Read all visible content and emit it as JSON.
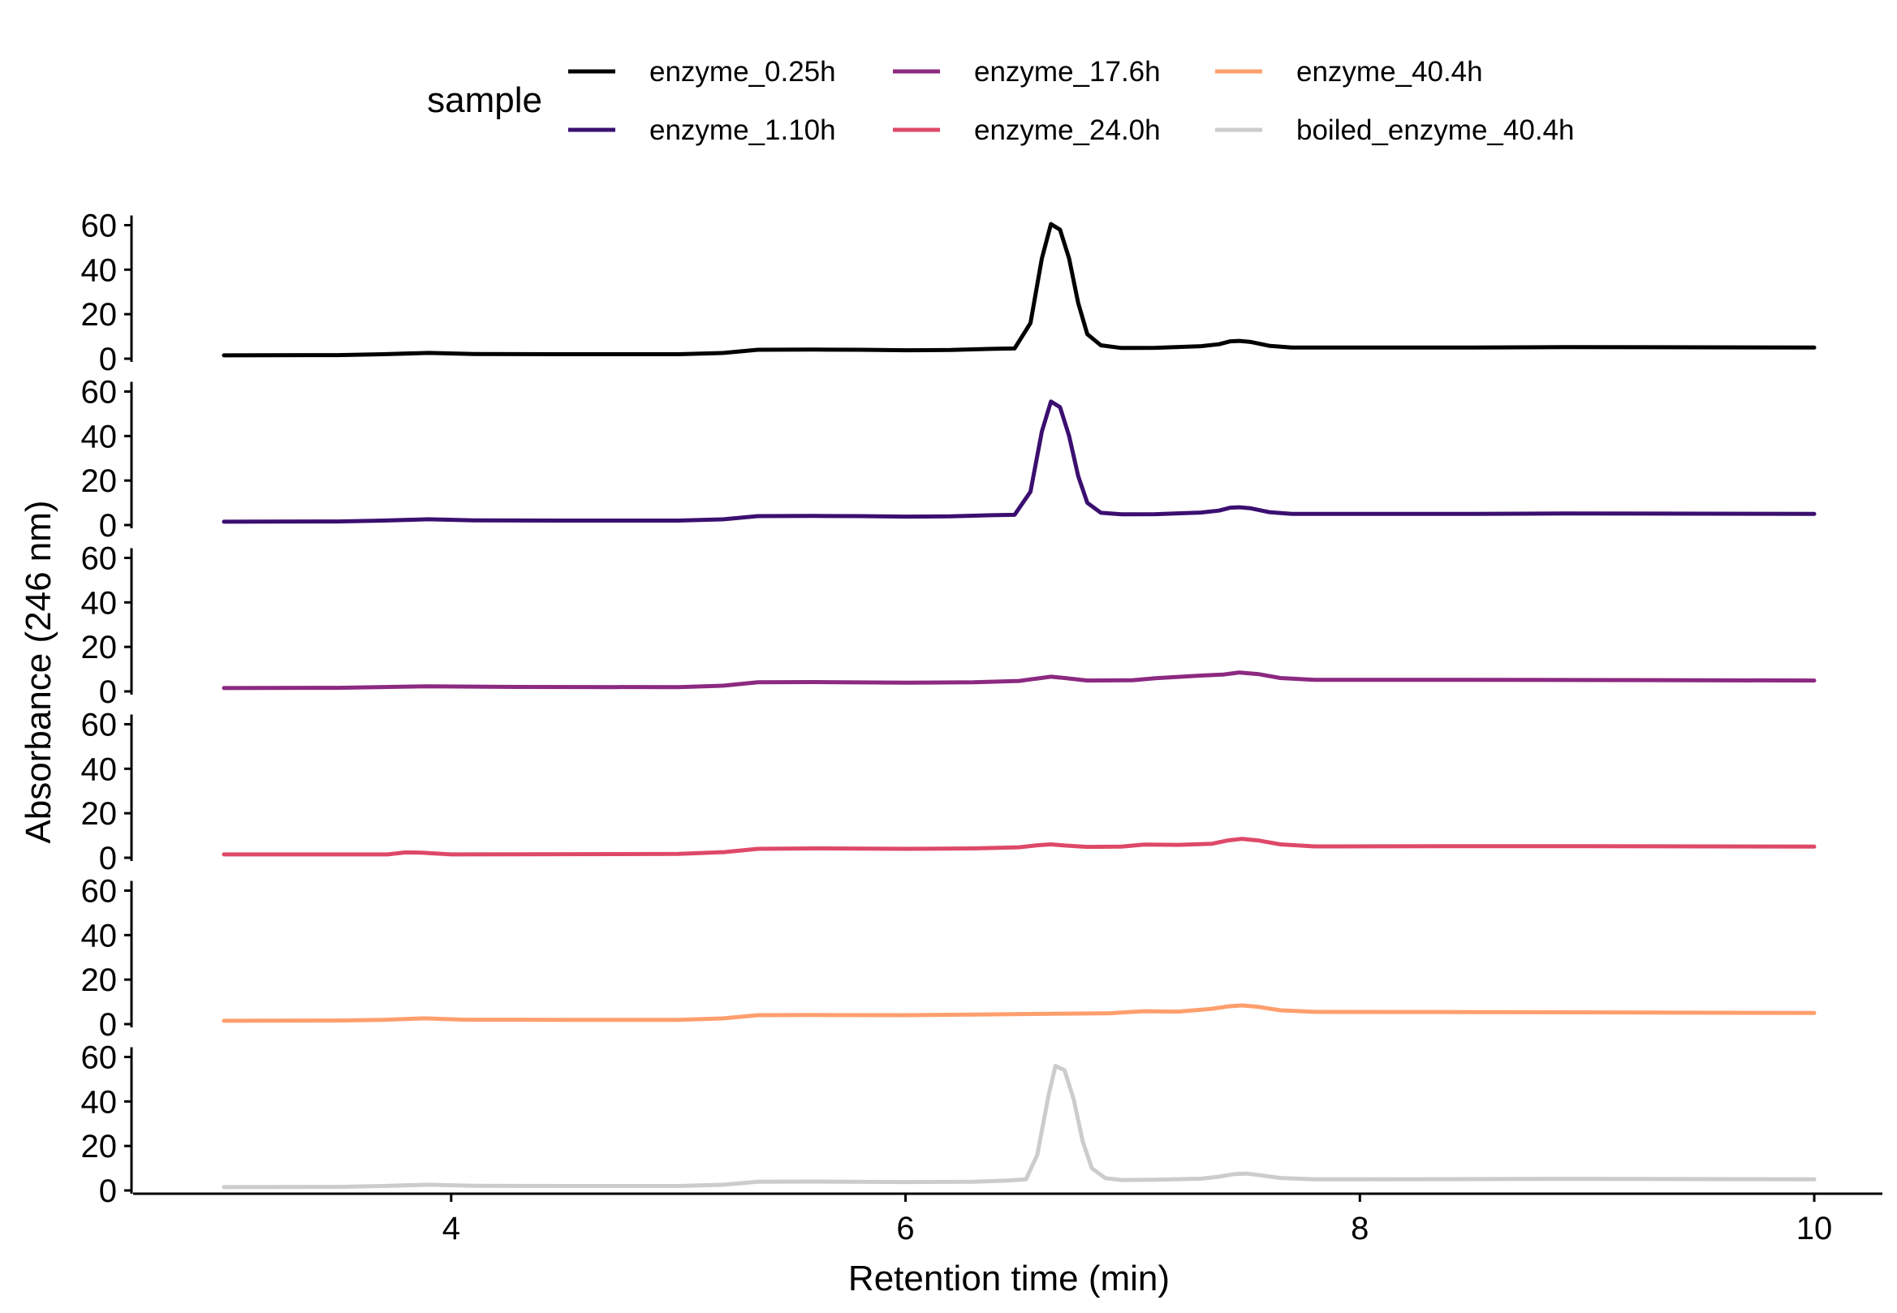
{
  "chart_data": {
    "type": "line",
    "layout": "stacked-panels",
    "xlabel": "Retention time (min)",
    "ylabel": "Absorbance (246 nm)",
    "xlim": [
      2.6,
      10.3
    ],
    "ylim": [
      0,
      62
    ],
    "x_ticks": [
      4,
      6,
      8,
      10
    ],
    "y_ticks": [
      0,
      20,
      40,
      60
    ],
    "grid": false,
    "legend": {
      "title": "sample",
      "position": "top",
      "columns": 3
    },
    "series": [
      {
        "name": "enzyme_0.25h",
        "color": "#000000",
        "points": [
          [
            3.0,
            1.5
          ],
          [
            3.5,
            1.6
          ],
          [
            3.7,
            2.0
          ],
          [
            3.9,
            2.6
          ],
          [
            4.1,
            2.1
          ],
          [
            4.5,
            2.0
          ],
          [
            5.0,
            2.0
          ],
          [
            5.2,
            2.6
          ],
          [
            5.35,
            4.0
          ],
          [
            5.6,
            4.1
          ],
          [
            5.8,
            4.0
          ],
          [
            6.0,
            3.8
          ],
          [
            6.2,
            3.9
          ],
          [
            6.38,
            4.4
          ],
          [
            6.48,
            4.6
          ],
          [
            6.55,
            16.0
          ],
          [
            6.6,
            45.0
          ],
          [
            6.64,
            60.5
          ],
          [
            6.68,
            58.0
          ],
          [
            6.72,
            45.0
          ],
          [
            6.76,
            25.0
          ],
          [
            6.8,
            11.0
          ],
          [
            6.86,
            6.0
          ],
          [
            6.95,
            4.8
          ],
          [
            7.1,
            4.9
          ],
          [
            7.3,
            5.6
          ],
          [
            7.38,
            6.5
          ],
          [
            7.43,
            7.8
          ],
          [
            7.47,
            8.0
          ],
          [
            7.52,
            7.5
          ],
          [
            7.6,
            5.8
          ],
          [
            7.7,
            5.0
          ],
          [
            8.0,
            5.0
          ],
          [
            8.5,
            5.0
          ],
          [
            8.9,
            5.2
          ],
          [
            9.5,
            5.1
          ],
          [
            10.0,
            5.0
          ]
        ]
      },
      {
        "name": "enzyme_1.10h",
        "color": "#3b0f70",
        "points": [
          [
            3.0,
            1.5
          ],
          [
            3.5,
            1.6
          ],
          [
            3.7,
            2.0
          ],
          [
            3.9,
            2.6
          ],
          [
            4.1,
            2.1
          ],
          [
            4.5,
            2.0
          ],
          [
            5.0,
            2.0
          ],
          [
            5.2,
            2.6
          ],
          [
            5.35,
            4.0
          ],
          [
            5.6,
            4.1
          ],
          [
            5.8,
            4.0
          ],
          [
            6.0,
            3.8
          ],
          [
            6.2,
            3.9
          ],
          [
            6.38,
            4.4
          ],
          [
            6.48,
            4.6
          ],
          [
            6.55,
            15.0
          ],
          [
            6.6,
            42.0
          ],
          [
            6.64,
            55.5
          ],
          [
            6.68,
            53.0
          ],
          [
            6.72,
            40.0
          ],
          [
            6.76,
            22.0
          ],
          [
            6.8,
            10.0
          ],
          [
            6.86,
            5.5
          ],
          [
            6.95,
            4.8
          ],
          [
            7.1,
            4.9
          ],
          [
            7.3,
            5.6
          ],
          [
            7.38,
            6.5
          ],
          [
            7.43,
            7.8
          ],
          [
            7.47,
            8.0
          ],
          [
            7.52,
            7.5
          ],
          [
            7.6,
            5.8
          ],
          [
            7.7,
            5.0
          ],
          [
            8.0,
            5.0
          ],
          [
            8.5,
            5.0
          ],
          [
            8.9,
            5.2
          ],
          [
            9.5,
            5.1
          ],
          [
            10.0,
            5.0
          ]
        ]
      },
      {
        "name": "enzyme_17.6h",
        "color": "#8c2981",
        "points": [
          [
            3.0,
            1.5
          ],
          [
            3.5,
            1.6
          ],
          [
            3.9,
            2.3
          ],
          [
            4.3,
            2.0
          ],
          [
            5.0,
            1.9
          ],
          [
            5.2,
            2.6
          ],
          [
            5.35,
            4.1
          ],
          [
            5.6,
            4.2
          ],
          [
            6.0,
            3.9
          ],
          [
            6.3,
            4.1
          ],
          [
            6.5,
            4.7
          ],
          [
            6.58,
            5.8
          ],
          [
            6.64,
            6.6
          ],
          [
            6.7,
            6.0
          ],
          [
            6.8,
            4.9
          ],
          [
            7.0,
            5.0
          ],
          [
            7.1,
            5.9
          ],
          [
            7.3,
            7.1
          ],
          [
            7.4,
            7.6
          ],
          [
            7.47,
            8.5
          ],
          [
            7.55,
            7.8
          ],
          [
            7.65,
            6.0
          ],
          [
            7.8,
            5.2
          ],
          [
            8.5,
            5.2
          ],
          [
            9.0,
            5.1
          ],
          [
            10.0,
            4.9
          ]
        ]
      },
      {
        "name": "enzyme_24.0h",
        "color": "#de4968",
        "points": [
          [
            3.0,
            1.5
          ],
          [
            3.5,
            1.5
          ],
          [
            3.72,
            1.5
          ],
          [
            3.8,
            2.4
          ],
          [
            3.87,
            2.3
          ],
          [
            4.0,
            1.5
          ],
          [
            4.5,
            1.6
          ],
          [
            5.0,
            1.7
          ],
          [
            5.2,
            2.5
          ],
          [
            5.35,
            4.0
          ],
          [
            5.6,
            4.2
          ],
          [
            6.0,
            4.0
          ],
          [
            6.3,
            4.2
          ],
          [
            6.5,
            4.7
          ],
          [
            6.58,
            5.6
          ],
          [
            6.64,
            6.0
          ],
          [
            6.7,
            5.5
          ],
          [
            6.8,
            4.9
          ],
          [
            6.95,
            5.0
          ],
          [
            7.05,
            5.9
          ],
          [
            7.2,
            5.8
          ],
          [
            7.35,
            6.3
          ],
          [
            7.42,
            7.8
          ],
          [
            7.48,
            8.5
          ],
          [
            7.55,
            7.8
          ],
          [
            7.65,
            6.0
          ],
          [
            7.8,
            5.1
          ],
          [
            8.5,
            5.2
          ],
          [
            9.0,
            5.2
          ],
          [
            10.0,
            5.0
          ]
        ]
      },
      {
        "name": "enzyme_40.4h",
        "color": "#fe9f6d",
        "points": [
          [
            3.0,
            1.5
          ],
          [
            3.5,
            1.6
          ],
          [
            3.7,
            1.9
          ],
          [
            3.88,
            2.6
          ],
          [
            4.05,
            2.0
          ],
          [
            4.5,
            1.9
          ],
          [
            5.0,
            1.9
          ],
          [
            5.2,
            2.6
          ],
          [
            5.35,
            4.0
          ],
          [
            5.6,
            4.1
          ],
          [
            6.0,
            4.0
          ],
          [
            6.3,
            4.3
          ],
          [
            6.6,
            4.6
          ],
          [
            6.9,
            4.9
          ],
          [
            7.05,
            5.8
          ],
          [
            7.2,
            5.6
          ],
          [
            7.35,
            6.9
          ],
          [
            7.42,
            8.0
          ],
          [
            7.48,
            8.4
          ],
          [
            7.55,
            7.8
          ],
          [
            7.65,
            6.2
          ],
          [
            7.8,
            5.5
          ],
          [
            8.5,
            5.4
          ],
          [
            9.0,
            5.3
          ],
          [
            10.0,
            5.0
          ]
        ]
      },
      {
        "name": "boiled_enzyme_40.4h",
        "color": "#cccccc",
        "points": [
          [
            3.0,
            1.5
          ],
          [
            3.5,
            1.6
          ],
          [
            3.7,
            2.0
          ],
          [
            3.9,
            2.6
          ],
          [
            4.1,
            2.1
          ],
          [
            4.5,
            2.0
          ],
          [
            5.0,
            2.0
          ],
          [
            5.2,
            2.6
          ],
          [
            5.35,
            3.9
          ],
          [
            5.6,
            4.0
          ],
          [
            6.0,
            3.8
          ],
          [
            6.3,
            3.9
          ],
          [
            6.45,
            4.5
          ],
          [
            6.53,
            5.0
          ],
          [
            6.58,
            16.0
          ],
          [
            6.63,
            43.0
          ],
          [
            6.66,
            56.0
          ],
          [
            6.7,
            54.0
          ],
          [
            6.74,
            41.0
          ],
          [
            6.78,
            22.0
          ],
          [
            6.82,
            10.0
          ],
          [
            6.88,
            5.5
          ],
          [
            6.95,
            4.7
          ],
          [
            7.1,
            4.8
          ],
          [
            7.3,
            5.3
          ],
          [
            7.38,
            6.2
          ],
          [
            7.45,
            7.4
          ],
          [
            7.5,
            7.6
          ],
          [
            7.55,
            7.0
          ],
          [
            7.65,
            5.6
          ],
          [
            7.8,
            5.0
          ],
          [
            8.0,
            5.0
          ],
          [
            8.5,
            5.1
          ],
          [
            9.0,
            5.2
          ],
          [
            9.5,
            5.1
          ],
          [
            10.0,
            5.0
          ]
        ]
      }
    ]
  }
}
